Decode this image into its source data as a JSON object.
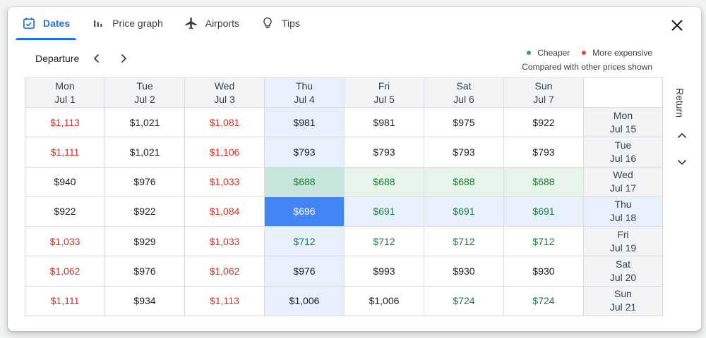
{
  "tabs": [
    {
      "label": "Dates",
      "icon": "calendar-icon",
      "active": true
    },
    {
      "label": "Price graph",
      "icon": "bar-chart-icon",
      "active": false
    },
    {
      "label": "Airports",
      "icon": "airplane-icon",
      "active": false
    },
    {
      "label": "Tips",
      "icon": "lightbulb-icon",
      "active": false
    }
  ],
  "departure_label": "Departure",
  "return_label": "Return",
  "legend": {
    "cheaper": "Cheaper",
    "more_expensive": "More expensive",
    "note": "Compared with other prices shown",
    "cheaper_color": "#34a853",
    "expensive_color": "#ea4335"
  },
  "departure_dates": [
    {
      "day": "Mon",
      "date": "Jul 1"
    },
    {
      "day": "Tue",
      "date": "Jul 2"
    },
    {
      "day": "Wed",
      "date": "Jul 3"
    },
    {
      "day": "Thu",
      "date": "Jul 4"
    },
    {
      "day": "Fri",
      "date": "Jul 5"
    },
    {
      "day": "Sat",
      "date": "Jul 6"
    },
    {
      "day": "Sun",
      "date": "Jul 7"
    }
  ],
  "return_dates": [
    {
      "day": "Mon",
      "date": "Jul 15"
    },
    {
      "day": "Tue",
      "date": "Jul 16"
    },
    {
      "day": "Wed",
      "date": "Jul 17"
    },
    {
      "day": "Thu",
      "date": "Jul 18"
    },
    {
      "day": "Fri",
      "date": "Jul 19"
    },
    {
      "day": "Sat",
      "date": "Jul 20"
    },
    {
      "day": "Sun",
      "date": "Jul 21"
    }
  ],
  "prices": [
    [
      "$1,113",
      "$1,021",
      "$1,081",
      "$981",
      "$981",
      "$975",
      "$922"
    ],
    [
      "$1,111",
      "$1,021",
      "$1,106",
      "$793",
      "$793",
      "$793",
      "$793"
    ],
    [
      "$940",
      "$976",
      "$1,033",
      "$688",
      "$688",
      "$688",
      "$688"
    ],
    [
      "$922",
      "$922",
      "$1,084",
      "$696",
      "$691",
      "$691",
      "$691"
    ],
    [
      "$1,033",
      "$929",
      "$1,033",
      "$712",
      "$712",
      "$712",
      "$712"
    ],
    [
      "$1,062",
      "$976",
      "$1,062",
      "$976",
      "$993",
      "$930",
      "$930"
    ],
    [
      "$1,111",
      "$934",
      "$1,113",
      "$1,006",
      "$1,006",
      "$724",
      "$724"
    ]
  ],
  "price_colors": [
    [
      "red",
      "black",
      "red",
      "black",
      "black",
      "black",
      "black"
    ],
    [
      "red",
      "black",
      "red",
      "black",
      "black",
      "black",
      "black"
    ],
    [
      "black",
      "black",
      "red",
      "green",
      "green",
      "green",
      "green"
    ],
    [
      "black",
      "black",
      "red",
      "white",
      "green",
      "green",
      "green"
    ],
    [
      "red",
      "black",
      "red",
      "green",
      "green",
      "green",
      "green"
    ],
    [
      "red",
      "black",
      "red",
      "black",
      "black",
      "black",
      "black"
    ],
    [
      "red",
      "black",
      "red",
      "black",
      "black",
      "green",
      "green"
    ]
  ],
  "selected": {
    "departure": "Thu Jul 4",
    "return": "Thu Jul 18",
    "price": "$696"
  }
}
